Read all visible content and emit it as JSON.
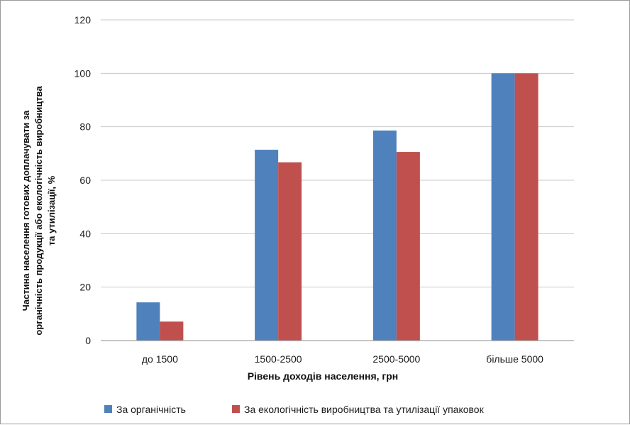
{
  "chart_data": {
    "type": "bar",
    "categories": [
      "до 1500",
      "1500-2500",
      "2500-5000",
      "більше 5000"
    ],
    "series": [
      {
        "name": "За органічність",
        "values": [
          14.3,
          71.4,
          78.6,
          100
        ],
        "color": "#4f81bd"
      },
      {
        "name": "За екологічність виробництва та утилізації упаковок",
        "values": [
          7.1,
          66.7,
          70.6,
          100
        ],
        "color": "#c0504d"
      }
    ],
    "xlabel": "Рівень доходів населення, грн",
    "ylabel": [
      "Частина населення готових доплачувати за",
      "органічність продукції або екологічність виробництва",
      "та утилізації, %"
    ],
    "ylim": [
      0,
      120
    ],
    "yticks": [
      0,
      20,
      40,
      60,
      80,
      100,
      120
    ],
    "grid": true,
    "legend_position": "bottom"
  }
}
